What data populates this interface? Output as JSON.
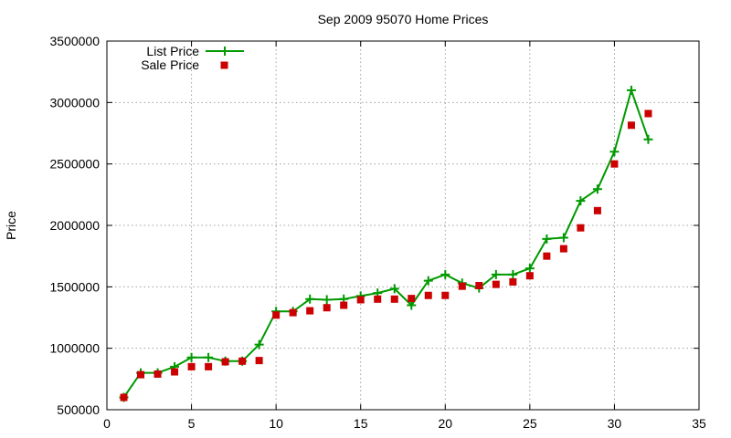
{
  "chart_data": {
    "type": "line",
    "title": "Sep 2009 95070 Home Prices",
    "xlabel": "",
    "ylabel": "Price",
    "xlim": [
      0,
      35
    ],
    "ylim": [
      500000,
      3500000
    ],
    "x_ticks": [
      0,
      5,
      10,
      15,
      20,
      25,
      30,
      35
    ],
    "y_ticks": [
      500000,
      1000000,
      1500000,
      2000000,
      2500000,
      3000000,
      3500000
    ],
    "grid": true,
    "legend_position": "top-left",
    "series": [
      {
        "name": "List Price",
        "style": "line+plus",
        "color": "#009900",
        "x": [
          1,
          2,
          3,
          4,
          5,
          6,
          7,
          8,
          9,
          10,
          11,
          12,
          13,
          14,
          15,
          16,
          17,
          18,
          19,
          20,
          21,
          22,
          23,
          24,
          25,
          26,
          27,
          28,
          29,
          30,
          31,
          32
        ],
        "values": [
          600000,
          800000,
          800000,
          850000,
          925000,
          925000,
          895000,
          895000,
          1030000,
          1300000,
          1300000,
          1400000,
          1395000,
          1400000,
          1425000,
          1450000,
          1485000,
          1350000,
          1550000,
          1600000,
          1530000,
          1490000,
          1600000,
          1600000,
          1650000,
          1890000,
          1900000,
          2200000,
          2295000,
          2600000,
          3100000,
          2700000
        ]
      },
      {
        "name": "Sale Price",
        "style": "square",
        "color": "#cc0000",
        "x": [
          1,
          2,
          3,
          4,
          5,
          6,
          7,
          8,
          9,
          10,
          11,
          12,
          13,
          14,
          15,
          16,
          17,
          18,
          19,
          20,
          21,
          22,
          23,
          24,
          25,
          26,
          27,
          28,
          29,
          30,
          31,
          32
        ],
        "values": [
          600000,
          785000,
          790000,
          808000,
          850000,
          850000,
          890000,
          895000,
          900000,
          1270000,
          1290000,
          1305000,
          1330000,
          1350000,
          1395000,
          1400000,
          1400000,
          1405000,
          1430000,
          1430000,
          1505000,
          1510000,
          1520000,
          1540000,
          1590000,
          1750000,
          1810000,
          1980000,
          2120000,
          2500000,
          2815000,
          2910000
        ]
      }
    ]
  }
}
